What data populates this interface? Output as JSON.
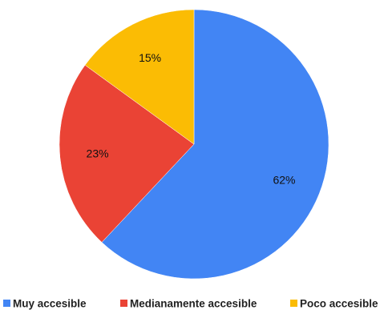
{
  "chart_data": {
    "type": "pie",
    "legend_position": "bottom",
    "slices": [
      {
        "label": "Muy accesible",
        "value": 62,
        "value_label": "62%",
        "color": "#4285F4"
      },
      {
        "label": "Medianamente accesible",
        "value": 23,
        "value_label": "23%",
        "color": "#EA4335"
      },
      {
        "label": "Poco accesible",
        "value": 15,
        "value_label": "15%",
        "color": "#FBBC04"
      }
    ]
  }
}
